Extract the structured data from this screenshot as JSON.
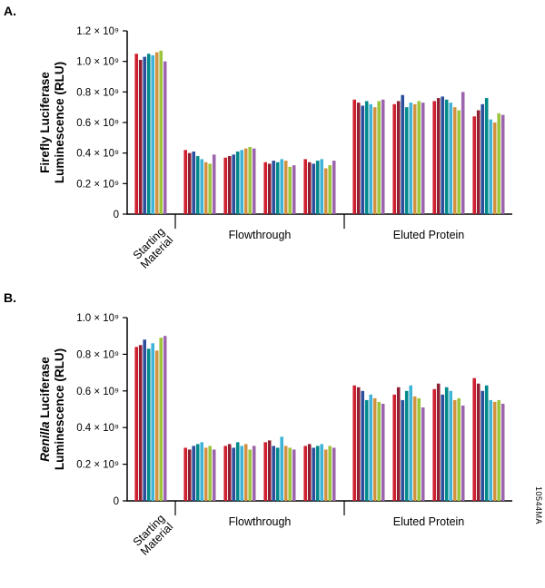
{
  "figure": {
    "panels": [
      {
        "label": "A."
      },
      {
        "label": "B."
      }
    ],
    "watermark": "10544MA"
  },
  "chart_data": [
    {
      "type": "bar",
      "panel": "A",
      "ylabel": {
        "lines": [
          [
            {
              "t": "Firefly Luciferase",
              "i": false
            }
          ],
          [
            {
              "t": "Luminescence (RLU)",
              "i": false
            }
          ]
        ]
      },
      "categories": [
        "Starting Material",
        "Flowthrough",
        "Eluted Protein"
      ],
      "clusters_per_category": [
        1,
        4,
        4
      ],
      "values_scale": "1e9",
      "ylim": [
        0,
        1.2
      ],
      "yticks": [
        {
          "v": 0,
          "label": "0"
        },
        {
          "v": 0.2,
          "label": "0.2 × 10⁹"
        },
        {
          "v": 0.4,
          "label": "0.4 × 10⁹"
        },
        {
          "v": 0.6,
          "label": "0.6 × 10⁹"
        },
        {
          "v": 0.8,
          "label": "0.8 × 10⁹"
        },
        {
          "v": 1.0,
          "label": "1.0 × 10⁹"
        },
        {
          "v": 1.2,
          "label": "1.2 × 10⁹"
        }
      ],
      "series_colors": [
        "#cf2030",
        "#8f2034",
        "#2d4f9b",
        "#00898b",
        "#3fb4d8",
        "#d2913f",
        "#9dc43b",
        "#9c64ad"
      ],
      "clusters": [
        [
          1.05,
          1.01,
          1.03,
          1.05,
          1.04,
          1.06,
          1.07,
          1.0
        ],
        [
          0.42,
          0.4,
          0.41,
          0.38,
          0.36,
          0.34,
          0.33,
          0.39
        ],
        [
          0.37,
          0.38,
          0.39,
          0.41,
          0.42,
          0.43,
          0.44,
          0.43
        ],
        [
          0.34,
          0.33,
          0.35,
          0.34,
          0.36,
          0.35,
          0.31,
          0.32
        ],
        [
          0.36,
          0.34,
          0.33,
          0.35,
          0.36,
          0.3,
          0.32,
          0.35
        ],
        [
          0.75,
          0.73,
          0.71,
          0.74,
          0.72,
          0.7,
          0.74,
          0.75
        ],
        [
          0.72,
          0.74,
          0.78,
          0.7,
          0.73,
          0.72,
          0.74,
          0.73
        ],
        [
          0.74,
          0.76,
          0.77,
          0.75,
          0.73,
          0.7,
          0.68,
          0.8
        ],
        [
          0.64,
          0.68,
          0.72,
          0.76,
          0.62,
          0.6,
          0.66,
          0.65
        ]
      ]
    },
    {
      "type": "bar",
      "panel": "B",
      "ylabel": {
        "lines": [
          [
            {
              "t": "Renilla",
              "i": true
            },
            {
              "t": " Luciferase",
              "i": false
            }
          ],
          [
            {
              "t": "Luminescence (RLU)",
              "i": false
            }
          ]
        ]
      },
      "categories": [
        "Starting Material",
        "Flowthrough",
        "Eluted Protein"
      ],
      "clusters_per_category": [
        1,
        4,
        4
      ],
      "values_scale": "1e9",
      "ylim": [
        0,
        1.0
      ],
      "yticks": [
        {
          "v": 0,
          "label": "0"
        },
        {
          "v": 0.2,
          "label": "0.2 × 10⁹"
        },
        {
          "v": 0.4,
          "label": "0.4 × 10⁹"
        },
        {
          "v": 0.6,
          "label": "0.6 × 10⁹"
        },
        {
          "v": 0.8,
          "label": "0.8 × 10⁹"
        },
        {
          "v": 1.0,
          "label": "1.0 × 10⁹"
        }
      ],
      "series_colors": [
        "#cf2030",
        "#8f2034",
        "#2d4f9b",
        "#00898b",
        "#3fb4d8",
        "#d2913f",
        "#9dc43b",
        "#9c64ad"
      ],
      "clusters": [
        [
          0.84,
          0.85,
          0.88,
          0.83,
          0.86,
          0.82,
          0.89,
          0.9
        ],
        [
          0.29,
          0.28,
          0.3,
          0.31,
          0.32,
          0.29,
          0.3,
          0.28
        ],
        [
          0.3,
          0.31,
          0.29,
          0.32,
          0.3,
          0.31,
          0.28,
          0.3
        ],
        [
          0.32,
          0.33,
          0.3,
          0.29,
          0.35,
          0.3,
          0.29,
          0.28
        ],
        [
          0.3,
          0.31,
          0.29,
          0.3,
          0.31,
          0.28,
          0.3,
          0.29
        ],
        [
          0.63,
          0.62,
          0.6,
          0.55,
          0.58,
          0.56,
          0.54,
          0.53
        ],
        [
          0.58,
          0.62,
          0.55,
          0.6,
          0.63,
          0.57,
          0.56,
          0.51
        ],
        [
          0.61,
          0.64,
          0.58,
          0.62,
          0.6,
          0.55,
          0.56,
          0.52
        ],
        [
          0.67,
          0.64,
          0.6,
          0.63,
          0.55,
          0.54,
          0.55,
          0.53
        ]
      ]
    }
  ]
}
